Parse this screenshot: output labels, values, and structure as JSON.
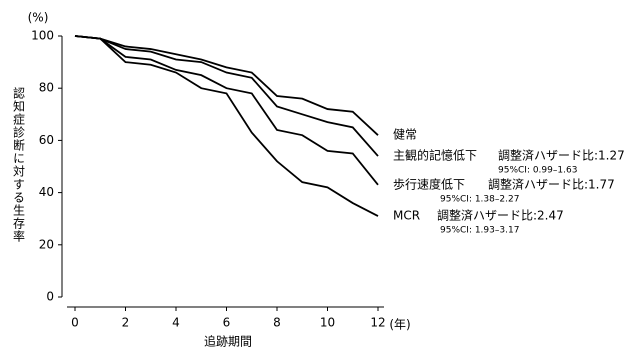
{
  "chart_data": {
    "type": "line",
    "y_unit": "(%)",
    "x_unit": "(年)",
    "y_label": "認知症診断に対する生存率",
    "x_label": "追跡期間",
    "x": [
      0,
      1,
      2,
      3,
      4,
      5,
      6,
      7,
      8,
      9,
      10,
      11,
      12
    ],
    "series": [
      {
        "name": "健常",
        "color": "#000000",
        "values": [
          100,
          99,
          96,
          95,
          93,
          91,
          88,
          86,
          77,
          76,
          72,
          71,
          62
        ]
      },
      {
        "name": "主観的記憶低下",
        "color": "#000000",
        "values": [
          100,
          99,
          95,
          94,
          91,
          90,
          86,
          84,
          73,
          70,
          67,
          65,
          54
        ],
        "hazard_ratio": "調整済ハザード比:1.27",
        "ci": "95%CI: 0.99–1.63"
      },
      {
        "name": "歩行速度低下",
        "color": "#000000",
        "values": [
          100,
          99,
          92,
          91,
          87,
          85,
          80,
          78,
          64,
          62,
          56,
          55,
          43
        ],
        "hazard_ratio": "調整済ハザード比:1.77",
        "ci": "95%CI: 1.38–2.27"
      },
      {
        "name": "MCR",
        "color": "#000000",
        "values": [
          100,
          99,
          90,
          89,
          86,
          80,
          78,
          63,
          52,
          44,
          42,
          36,
          31
        ],
        "hazard_ratio": "調整済ハザード比:2.47",
        "ci": "95%CI: 1.93–3.17"
      }
    ],
    "xlim": [
      0,
      12
    ],
    "xticks": [
      0,
      2,
      4,
      6,
      8,
      10,
      12
    ],
    "ylim": [
      0,
      100
    ],
    "yticks": [
      0,
      20,
      40,
      60,
      80,
      100
    ]
  }
}
